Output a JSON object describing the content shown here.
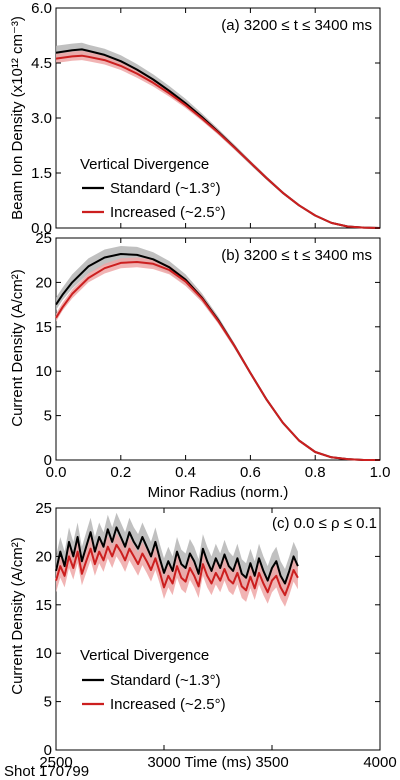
{
  "footer_text": "Shot 170799",
  "colors": {
    "standard": "#000000",
    "standard_band": "#b5b5b5",
    "increased": "#cc1f1f",
    "increased_band": "#eea7a7"
  },
  "chart_data": [
    {
      "type": "line",
      "annotation": "(a) 3200 ≤ t ≤ 3400 ms",
      "ylabel": "Beam Ion Density (x10¹² cm⁻³)",
      "xlabel": "",
      "xlim": [
        0.0,
        1.0
      ],
      "ylim": [
        0.0,
        6.0
      ],
      "yticks": [
        0.0,
        1.5,
        3.0,
        4.5,
        6.0
      ],
      "ytick_labels": [
        "0.0",
        "1.5",
        "3.0",
        "4.5",
        "6.0"
      ],
      "xticks": [
        0.0,
        0.2,
        0.4,
        0.6,
        0.8,
        1.0
      ],
      "xtick_labels": [
        "",
        "",
        "",
        "",
        "",
        ""
      ],
      "legend": {
        "title": "Vertical Divergence",
        "entries": [
          "Standard (~1.3°)",
          "Increased (~2.5°)"
        ],
        "placement": "lower-left"
      },
      "series": [
        {
          "name": "Standard (~1.3°)",
          "x": [
            0.0,
            0.05,
            0.08,
            0.1,
            0.15,
            0.2,
            0.25,
            0.3,
            0.35,
            0.4,
            0.45,
            0.5,
            0.55,
            0.6,
            0.65,
            0.7,
            0.75,
            0.8,
            0.85,
            0.9,
            0.95,
            1.0
          ],
          "y": [
            4.78,
            4.85,
            4.87,
            4.83,
            4.72,
            4.55,
            4.32,
            4.05,
            3.74,
            3.4,
            3.03,
            2.63,
            2.21,
            1.78,
            1.36,
            0.96,
            0.62,
            0.34,
            0.14,
            0.04,
            0.01,
            0.0
          ],
          "lower": [
            4.62,
            4.68,
            4.7,
            4.66,
            4.56,
            4.4,
            4.18,
            3.92,
            3.62,
            3.3,
            2.94,
            2.55,
            2.14,
            1.72,
            1.31,
            0.92,
            0.59,
            0.32,
            0.13,
            0.035,
            0.008,
            0.0
          ],
          "upper": [
            4.97,
            5.03,
            5.05,
            5.0,
            4.89,
            4.71,
            4.47,
            4.19,
            3.87,
            3.52,
            3.13,
            2.71,
            2.28,
            1.84,
            1.41,
            1.0,
            0.65,
            0.36,
            0.15,
            0.045,
            0.012,
            0.0
          ]
        },
        {
          "name": "Increased (~2.5°)",
          "x": [
            0.0,
            0.05,
            0.08,
            0.1,
            0.15,
            0.2,
            0.25,
            0.3,
            0.35,
            0.4,
            0.45,
            0.5,
            0.55,
            0.6,
            0.65,
            0.7,
            0.75,
            0.8,
            0.85,
            0.9,
            0.95,
            1.0
          ],
          "y": [
            4.62,
            4.68,
            4.7,
            4.67,
            4.58,
            4.42,
            4.21,
            3.96,
            3.67,
            3.35,
            2.99,
            2.61,
            2.2,
            1.78,
            1.36,
            0.96,
            0.62,
            0.34,
            0.14,
            0.04,
            0.01,
            0.0
          ],
          "lower": [
            4.5,
            4.56,
            4.58,
            4.55,
            4.46,
            4.31,
            4.1,
            3.86,
            3.58,
            3.27,
            2.92,
            2.55,
            2.15,
            1.74,
            1.33,
            0.94,
            0.6,
            0.33,
            0.135,
            0.038,
            0.009,
            0.0
          ],
          "upper": [
            4.75,
            4.81,
            4.83,
            4.8,
            4.7,
            4.54,
            4.32,
            4.07,
            3.77,
            3.44,
            3.07,
            2.68,
            2.26,
            1.83,
            1.4,
            0.99,
            0.64,
            0.35,
            0.145,
            0.042,
            0.011,
            0.0
          ]
        }
      ]
    },
    {
      "type": "line",
      "annotation": "(b) 3200 ≤ t ≤ 3400 ms",
      "ylabel": "Current Density (A/cm²)",
      "xlabel": "Minor Radius (norm.)",
      "xlim": [
        0.0,
        1.0
      ],
      "ylim": [
        0,
        25
      ],
      "yticks": [
        0,
        5,
        10,
        15,
        20,
        25
      ],
      "ytick_labels": [
        "0",
        "5",
        "10",
        "15",
        "20",
        "25"
      ],
      "xticks": [
        0.0,
        0.2,
        0.4,
        0.6,
        0.8,
        1.0
      ],
      "xtick_labels": [
        "0.0",
        "0.2",
        "0.4",
        "0.6",
        "0.8",
        "1.0"
      ],
      "series": [
        {
          "name": "Standard (~1.3°)",
          "x": [
            0.0,
            0.02,
            0.05,
            0.1,
            0.15,
            0.2,
            0.25,
            0.3,
            0.35,
            0.4,
            0.45,
            0.5,
            0.55,
            0.6,
            0.65,
            0.7,
            0.75,
            0.8,
            0.85,
            0.9,
            0.95,
            1.0
          ],
          "y": [
            17.5,
            18.6,
            20.0,
            21.8,
            22.8,
            23.2,
            23.1,
            22.6,
            21.7,
            20.3,
            18.3,
            15.8,
            12.9,
            9.8,
            6.8,
            4.2,
            2.2,
            0.9,
            0.3,
            0.1,
            0.0,
            0.0
          ],
          "lower": [
            16.9,
            18.0,
            19.3,
            21.0,
            21.9,
            22.3,
            22.2,
            21.8,
            21.0,
            19.7,
            17.8,
            15.4,
            12.6,
            9.6,
            6.6,
            4.1,
            2.1,
            0.85,
            0.28,
            0.08,
            0.0,
            0.0
          ],
          "upper": [
            18.3,
            19.4,
            20.9,
            22.7,
            23.7,
            24.1,
            24.0,
            23.4,
            22.4,
            20.9,
            18.8,
            16.2,
            13.2,
            10.0,
            7.0,
            4.3,
            2.3,
            0.95,
            0.32,
            0.11,
            0.0,
            0.0
          ]
        },
        {
          "name": "Increased (~2.5°)",
          "x": [
            0.0,
            0.02,
            0.05,
            0.1,
            0.15,
            0.2,
            0.25,
            0.3,
            0.35,
            0.4,
            0.45,
            0.5,
            0.55,
            0.6,
            0.65,
            0.7,
            0.75,
            0.8,
            0.85,
            0.9,
            0.95,
            1.0
          ],
          "y": [
            16.0,
            17.2,
            18.7,
            20.5,
            21.6,
            22.2,
            22.3,
            22.1,
            21.4,
            20.1,
            18.2,
            15.7,
            12.9,
            9.8,
            6.8,
            4.2,
            2.2,
            0.9,
            0.3,
            0.1,
            0.0,
            0.0
          ],
          "lower": [
            15.6,
            16.8,
            18.2,
            20.0,
            21.0,
            21.6,
            21.7,
            21.5,
            20.9,
            19.6,
            17.8,
            15.4,
            12.6,
            9.6,
            6.6,
            4.1,
            2.1,
            0.85,
            0.28,
            0.08,
            0.0,
            0.0
          ],
          "upper": [
            16.5,
            17.7,
            19.2,
            21.0,
            22.1,
            22.7,
            22.8,
            22.6,
            21.9,
            20.5,
            18.6,
            16.0,
            13.1,
            10.0,
            7.0,
            4.3,
            2.3,
            0.95,
            0.32,
            0.11,
            0.0,
            0.0
          ]
        }
      ]
    },
    {
      "type": "line",
      "annotation": "(c) 0.0 ≤ ρ ≤ 0.1",
      "ylabel": "Current Density (A/cm²)",
      "xlabel": "Time (ms)",
      "xlim": [
        2500,
        4000
      ],
      "ylim": [
        0,
        25
      ],
      "yticks": [
        0,
        5,
        10,
        15,
        20,
        25
      ],
      "ytick_labels": [
        "0",
        "5",
        "10",
        "15",
        "20",
        "25"
      ],
      "xticks": [
        2500,
        3000,
        3500,
        4000
      ],
      "xtick_labels": [
        "2500",
        "3000",
        "3500",
        "4000"
      ],
      "band_halfwidth": {
        "standard": 1.5,
        "increased": 1.2
      },
      "legend": {
        "title": "Vertical Divergence",
        "entries": [
          "Standard (~1.3°)",
          "Increased (~2.5°)"
        ],
        "placement": "lower-left"
      },
      "series": [
        {
          "name": "Standard (~1.3°)",
          "x": [
            2500,
            2520,
            2540,
            2560,
            2580,
            2600,
            2620,
            2640,
            2660,
            2680,
            2700,
            2720,
            2740,
            2760,
            2780,
            2800,
            2820,
            2840,
            2860,
            2880,
            2900,
            2920,
            2940,
            2960,
            2980,
            3000,
            3020,
            3040,
            3060,
            3080,
            3100,
            3120,
            3140,
            3160,
            3180,
            3200,
            3220,
            3240,
            3260,
            3280,
            3300,
            3320,
            3340,
            3360,
            3380,
            3400,
            3420,
            3440,
            3460,
            3480,
            3500,
            3520,
            3540,
            3560,
            3580,
            3600,
            3620
          ],
          "y": [
            18.5,
            20.5,
            19.0,
            21.5,
            20.0,
            22.0,
            19.5,
            21.0,
            22.5,
            20.5,
            22.0,
            21.0,
            22.8,
            21.5,
            23.0,
            22.0,
            21.0,
            22.5,
            21.5,
            20.8,
            22.0,
            21.0,
            20.0,
            21.5,
            19.8,
            18.3,
            19.5,
            18.5,
            20.5,
            19.2,
            18.8,
            20.3,
            19.5,
            18.2,
            20.8,
            19.5,
            18.5,
            19.8,
            18.8,
            20.2,
            19.0,
            18.5,
            19.8,
            18.2,
            17.8,
            19.3,
            18.0,
            19.8,
            18.5,
            17.5,
            18.8,
            19.5,
            18.0,
            17.2,
            18.5,
            20.0,
            19.0
          ],
          "lower": [],
          "upper": []
        },
        {
          "name": "Increased (~2.5°)",
          "x": [
            2500,
            2520,
            2540,
            2560,
            2580,
            2600,
            2620,
            2640,
            2660,
            2680,
            2700,
            2720,
            2740,
            2760,
            2780,
            2800,
            2820,
            2840,
            2860,
            2880,
            2900,
            2920,
            2940,
            2960,
            2980,
            3000,
            3020,
            3040,
            3060,
            3080,
            3100,
            3120,
            3140,
            3160,
            3180,
            3200,
            3220,
            3240,
            3260,
            3280,
            3300,
            3320,
            3340,
            3360,
            3380,
            3400,
            3420,
            3440,
            3460,
            3480,
            3500,
            3520,
            3540,
            3560,
            3580,
            3600,
            3620
          ],
          "y": [
            17.5,
            19.0,
            18.0,
            20.0,
            18.8,
            20.5,
            18.2,
            19.5,
            20.8,
            19.2,
            20.5,
            19.6,
            21.0,
            20.0,
            21.2,
            20.5,
            19.6,
            20.8,
            20.0,
            19.2,
            20.3,
            19.5,
            18.6,
            19.8,
            18.4,
            16.8,
            18.0,
            17.2,
            19.0,
            17.8,
            17.4,
            18.8,
            18.0,
            16.9,
            19.2,
            18.0,
            17.2,
            18.3,
            17.5,
            18.7,
            17.6,
            17.2,
            18.3,
            16.9,
            16.5,
            17.9,
            16.7,
            18.3,
            17.2,
            16.3,
            17.5,
            18.0,
            16.8,
            16.0,
            17.2,
            18.6,
            17.8
          ],
          "lower": [],
          "upper": []
        }
      ]
    }
  ]
}
